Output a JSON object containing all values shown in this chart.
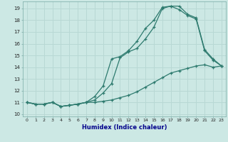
{
  "xlabel": "Humidex (Indice chaleur)",
  "bg_color": "#cce8e4",
  "grid_color": "#b8d8d4",
  "line_color": "#2d7a6e",
  "xlim": [
    -0.5,
    23.5
  ],
  "ylim": [
    9.8,
    19.6
  ],
  "xticks": [
    0,
    1,
    2,
    3,
    4,
    5,
    6,
    7,
    8,
    9,
    10,
    11,
    12,
    13,
    14,
    15,
    16,
    17,
    18,
    19,
    20,
    21,
    22,
    23
  ],
  "yticks": [
    10,
    11,
    12,
    13,
    14,
    15,
    16,
    17,
    18,
    19
  ],
  "curve_bot_x": [
    0,
    1,
    2,
    3,
    4,
    5,
    6,
    7,
    8,
    9,
    10,
    11,
    12,
    13,
    14,
    15,
    16,
    17,
    18,
    19,
    20,
    21,
    22,
    23
  ],
  "curve_bot_y": [
    11.0,
    10.85,
    10.85,
    11.0,
    10.65,
    10.75,
    10.85,
    11.0,
    11.0,
    11.1,
    11.2,
    11.4,
    11.6,
    11.9,
    12.3,
    12.7,
    13.1,
    13.5,
    13.7,
    13.9,
    14.1,
    14.2,
    14.0,
    14.1
  ],
  "curve_top_x": [
    0,
    1,
    2,
    3,
    4,
    5,
    6,
    7,
    8,
    9,
    10,
    11,
    12,
    13,
    14,
    15,
    16,
    17,
    18,
    19,
    20,
    21,
    22,
    23
  ],
  "curve_top_y": [
    11.0,
    10.85,
    10.85,
    11.0,
    10.65,
    10.75,
    10.85,
    11.0,
    11.5,
    12.4,
    14.7,
    14.9,
    15.4,
    16.2,
    17.3,
    18.0,
    19.1,
    19.2,
    19.2,
    18.5,
    18.2,
    15.5,
    14.7,
    14.1
  ],
  "curve_mid_x": [
    0,
    1,
    2,
    3,
    4,
    5,
    6,
    7,
    8,
    9,
    10,
    11,
    12,
    13,
    14,
    15,
    16,
    17,
    18,
    19,
    20,
    21,
    22,
    23
  ],
  "curve_mid_y": [
    11.0,
    10.85,
    10.85,
    11.0,
    10.65,
    10.75,
    10.85,
    11.0,
    11.2,
    11.8,
    12.6,
    14.8,
    15.3,
    15.6,
    16.4,
    17.4,
    19.0,
    19.2,
    18.9,
    18.4,
    18.1,
    15.4,
    14.6,
    14.1
  ]
}
